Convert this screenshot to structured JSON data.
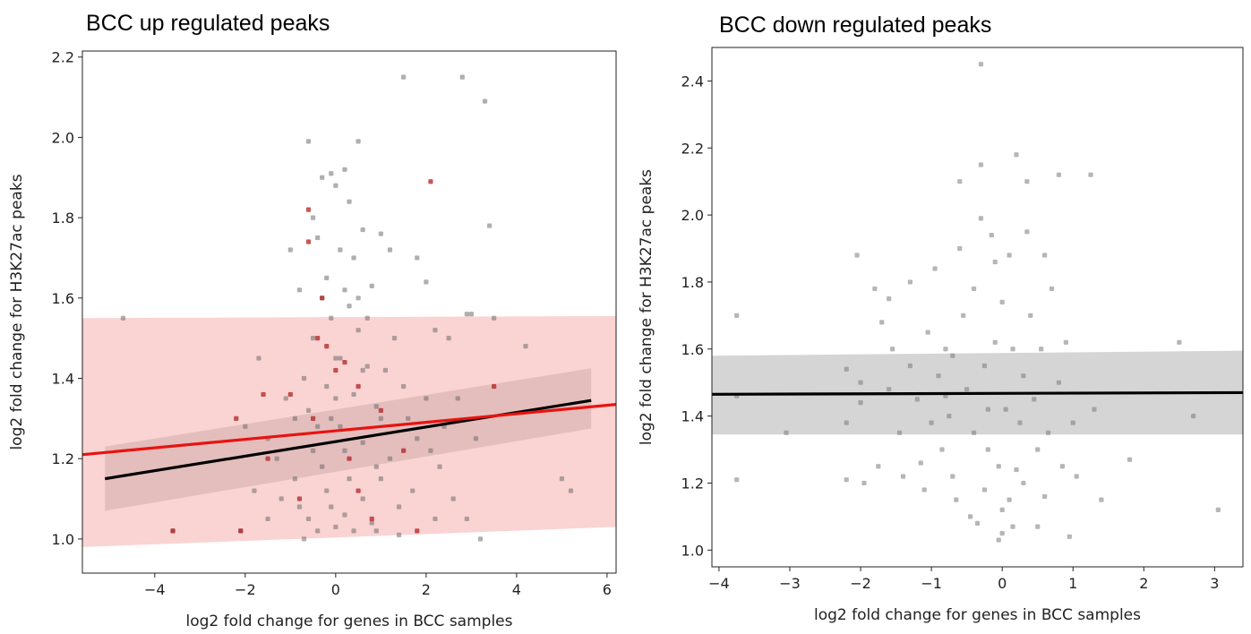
{
  "chart_data": [
    {
      "type": "scatter",
      "title": "BCC up regulated peaks",
      "xlabel": "log2 fold change for genes in BCC samples",
      "ylabel": "log2 fold change for H3K27ac peaks",
      "xlim": [
        -5.6,
        6.2
      ],
      "ylim": [
        0.915,
        2.215
      ],
      "xticks": [
        -4,
        -2,
        0,
        2,
        4,
        6
      ],
      "yticks": [
        1.0,
        1.2,
        1.4,
        1.6,
        1.8,
        2.0,
        2.2
      ],
      "colors": {
        "gray_points": "#6e6e6e",
        "red_points": "#b22222",
        "red_line": "#e8130f",
        "black_line": "#000000",
        "red_band": "#f7b8b8",
        "gray_band": "#808080"
      },
      "series": [
        {
          "color": "gray",
          "points": [
            [
              -4.7,
              1.55
            ],
            [
              -3.6,
              1.02
            ],
            [
              -2.1,
              1.02
            ],
            [
              -1.7,
              1.45
            ],
            [
              -1.5,
              1.25
            ],
            [
              -1.2,
              1.1
            ],
            [
              -1.0,
              1.72
            ],
            [
              -0.8,
              1.62
            ],
            [
              -0.6,
              1.99
            ],
            [
              -0.5,
              1.8
            ],
            [
              -0.4,
              1.75
            ],
            [
              -0.3,
              1.9
            ],
            [
              -0.1,
              1.91
            ],
            [
              0.0,
              1.88
            ],
            [
              0.2,
              1.92
            ],
            [
              0.3,
              1.84
            ],
            [
              0.5,
              1.99
            ],
            [
              0.6,
              1.77
            ],
            [
              0.8,
              1.63
            ],
            [
              1.0,
              1.76
            ],
            [
              1.2,
              1.72
            ],
            [
              1.5,
              2.15
            ],
            [
              1.8,
              1.7
            ],
            [
              2.0,
              1.64
            ],
            [
              2.2,
              1.52
            ],
            [
              2.5,
              1.5
            ],
            [
              2.8,
              2.15
            ],
            [
              2.9,
              1.56
            ],
            [
              3.0,
              1.56
            ],
            [
              3.3,
              2.09
            ],
            [
              3.4,
              1.78
            ],
            [
              3.5,
              1.55
            ],
            [
              4.2,
              1.48
            ],
            [
              5.0,
              1.15
            ],
            [
              5.2,
              1.12
            ],
            [
              -0.9,
              1.3
            ],
            [
              -0.7,
              1.4
            ],
            [
              -0.5,
              1.5
            ],
            [
              -0.3,
              1.6
            ],
            [
              -0.1,
              1.55
            ],
            [
              0.1,
              1.45
            ],
            [
              0.3,
              1.58
            ],
            [
              0.5,
              1.52
            ],
            [
              0.7,
              1.43
            ],
            [
              0.9,
              1.33
            ],
            [
              -0.8,
              1.08
            ],
            [
              -0.6,
              1.05
            ],
            [
              -0.4,
              1.02
            ],
            [
              -0.2,
              1.12
            ],
            [
              0.0,
              1.03
            ],
            [
              0.2,
              1.06
            ],
            [
              0.4,
              1.02
            ],
            [
              0.6,
              1.1
            ],
            [
              0.8,
              1.04
            ],
            [
              1.0,
              1.15
            ],
            [
              1.2,
              1.2
            ],
            [
              1.4,
              1.08
            ],
            [
              1.6,
              1.3
            ],
            [
              1.8,
              1.25
            ],
            [
              2.0,
              1.35
            ],
            [
              2.3,
              1.18
            ],
            [
              2.6,
              1.1
            ],
            [
              2.9,
              1.05
            ],
            [
              3.2,
              1.0
            ],
            [
              -1.3,
              1.2
            ],
            [
              -1.1,
              1.35
            ],
            [
              -0.9,
              1.15
            ],
            [
              -0.2,
              1.38
            ],
            [
              0.1,
              1.28
            ],
            [
              0.4,
              1.36
            ],
            [
              0.6,
              1.24
            ],
            [
              0.9,
              1.18
            ],
            [
              1.1,
              1.42
            ],
            [
              1.3,
              1.5
            ],
            [
              1.5,
              1.38
            ],
            [
              1.7,
              1.12
            ],
            [
              2.1,
              1.22
            ],
            [
              2.4,
              1.28
            ],
            [
              -0.5,
              1.22
            ],
            [
              -0.3,
              1.18
            ],
            [
              -0.1,
              1.08
            ],
            [
              0.0,
              1.45
            ],
            [
              0.2,
              1.62
            ],
            [
              0.4,
              1.7
            ],
            [
              0.0,
              1.35
            ],
            [
              0.3,
              1.15
            ],
            [
              -0.6,
              1.32
            ],
            [
              0.7,
              1.55
            ],
            [
              1.0,
              1.3
            ],
            [
              -1.5,
              1.05
            ],
            [
              -2.0,
              1.28
            ],
            [
              -1.8,
              1.12
            ],
            [
              2.7,
              1.35
            ],
            [
              3.1,
              1.25
            ],
            [
              0.5,
              1.6
            ],
            [
              -0.2,
              1.65
            ],
            [
              0.1,
              1.72
            ],
            [
              0.9,
              1.02
            ],
            [
              -0.7,
              1.0
            ],
            [
              1.4,
              1.01
            ],
            [
              2.2,
              1.05
            ],
            [
              -0.4,
              1.28
            ],
            [
              0.6,
              1.42
            ],
            [
              0.2,
              1.22
            ],
            [
              -0.1,
              1.3
            ]
          ]
        },
        {
          "color": "red",
          "points": [
            [
              -3.6,
              1.02
            ],
            [
              -2.1,
              1.02
            ],
            [
              -0.6,
              1.82
            ],
            [
              -0.6,
              1.74
            ],
            [
              2.1,
              1.89
            ],
            [
              -0.4,
              1.5
            ],
            [
              -0.2,
              1.48
            ],
            [
              0.2,
              1.44
            ],
            [
              -2.2,
              1.3
            ],
            [
              -1.0,
              1.36
            ],
            [
              -0.5,
              1.3
            ],
            [
              0.0,
              1.42
            ],
            [
              0.5,
              1.38
            ],
            [
              1.0,
              1.32
            ],
            [
              -1.5,
              1.2
            ],
            [
              0.5,
              1.12
            ],
            [
              1.5,
              1.22
            ],
            [
              3.5,
              1.38
            ],
            [
              -0.3,
              1.6
            ],
            [
              0.8,
              1.05
            ],
            [
              -0.8,
              1.1
            ],
            [
              1.8,
              1.02
            ],
            [
              -1.6,
              1.36
            ],
            [
              0.3,
              1.2
            ]
          ]
        }
      ],
      "regression_lines": [
        {
          "color": "black",
          "x": [
            -5.1,
            5.65
          ],
          "y": [
            1.15,
            1.345
          ],
          "ci_lower": [
            1.07,
            1.275
          ],
          "ci_upper": [
            1.23,
            1.425
          ]
        },
        {
          "color": "red",
          "x": [
            -5.6,
            6.2
          ],
          "y": [
            1.21,
            1.335
          ],
          "ci_lower": [
            0.98,
            1.03
          ],
          "ci_upper": [
            1.55,
            1.555
          ]
        }
      ]
    },
    {
      "type": "scatter",
      "title": "BCC down regulated peaks",
      "xlabel": "log2 fold change for genes in BCC samples",
      "ylabel": "log2 fold change for H3K27ac peaks",
      "xlim": [
        -4.1,
        3.4
      ],
      "ylim": [
        0.95,
        2.5
      ],
      "xticks": [
        -4,
        -3,
        -2,
        -1,
        0,
        1,
        2,
        3
      ],
      "yticks": [
        1.0,
        1.2,
        1.4,
        1.6,
        1.8,
        2.0,
        2.2,
        2.4
      ],
      "colors": {
        "gray_points": "#7a7a7a",
        "black_line": "#000000",
        "gray_band": "#d5d5d5"
      },
      "series": [
        {
          "color": "gray",
          "points": [
            [
              -3.75,
              1.7
            ],
            [
              -3.75,
              1.46
            ],
            [
              -3.75,
              1.21
            ],
            [
              -3.05,
              1.35
            ],
            [
              -2.2,
              1.54
            ],
            [
              -2.2,
              1.38
            ],
            [
              -2.2,
              1.21
            ],
            [
              -2.05,
              1.88
            ],
            [
              -2.0,
              1.5
            ],
            [
              -2.0,
              1.44
            ],
            [
              -1.95,
              1.2
            ],
            [
              -1.8,
              1.78
            ],
            [
              -1.75,
              1.25
            ],
            [
              -1.7,
              1.68
            ],
            [
              -1.6,
              1.75
            ],
            [
              -1.55,
              1.6
            ],
            [
              -1.45,
              1.35
            ],
            [
              -1.4,
              1.22
            ],
            [
              -1.3,
              1.8
            ],
            [
              -1.3,
              1.55
            ],
            [
              -1.2,
              1.45
            ],
            [
              -1.15,
              1.26
            ],
            [
              -1.1,
              1.18
            ],
            [
              -1.05,
              1.65
            ],
            [
              -1.0,
              1.38
            ],
            [
              -0.95,
              1.84
            ],
            [
              -0.9,
              1.52
            ],
            [
              -0.85,
              1.3
            ],
            [
              -0.8,
              1.6
            ],
            [
              -0.75,
              1.4
            ],
            [
              -0.7,
              1.22
            ],
            [
              -0.65,
              1.15
            ],
            [
              -0.6,
              2.1
            ],
            [
              -0.55,
              1.7
            ],
            [
              -0.5,
              1.48
            ],
            [
              -0.45,
              1.1
            ],
            [
              -0.4,
              1.35
            ],
            [
              -0.35,
              1.08
            ],
            [
              -0.3,
              2.45
            ],
            [
              -0.3,
              2.15
            ],
            [
              -0.3,
              1.99
            ],
            [
              -0.25,
              1.55
            ],
            [
              -0.2,
              1.3
            ],
            [
              -0.15,
              1.94
            ],
            [
              -0.1,
              1.62
            ],
            [
              -0.05,
              1.25
            ],
            [
              0.0,
              1.12
            ],
            [
              0.0,
              1.05
            ],
            [
              0.05,
              1.42
            ],
            [
              0.1,
              1.88
            ],
            [
              0.15,
              1.6
            ],
            [
              0.2,
              2.18
            ],
            [
              0.25,
              1.38
            ],
            [
              0.3,
              1.2
            ],
            [
              0.35,
              2.1
            ],
            [
              0.35,
              1.95
            ],
            [
              0.4,
              1.7
            ],
            [
              0.45,
              1.45
            ],
            [
              0.5,
              1.3
            ],
            [
              0.5,
              1.07
            ],
            [
              0.55,
              1.6
            ],
            [
              0.6,
              1.88
            ],
            [
              0.65,
              1.35
            ],
            [
              0.7,
              1.78
            ],
            [
              0.8,
              2.12
            ],
            [
              0.8,
              1.5
            ],
            [
              0.85,
              1.25
            ],
            [
              0.9,
              1.62
            ],
            [
              0.95,
              1.04
            ],
            [
              1.0,
              1.38
            ],
            [
              1.05,
              1.22
            ],
            [
              1.25,
              2.12
            ],
            [
              1.3,
              1.42
            ],
            [
              1.4,
              1.15
            ],
            [
              1.8,
              1.27
            ],
            [
              2.5,
              1.62
            ],
            [
              2.7,
              1.4
            ],
            [
              3.05,
              1.12
            ],
            [
              -0.6,
              1.9
            ],
            [
              -0.2,
              1.42
            ],
            [
              0.1,
              1.15
            ],
            [
              -0.4,
              1.78
            ],
            [
              0.3,
              1.52
            ],
            [
              -0.8,
              1.46
            ],
            [
              -1.6,
              1.48
            ],
            [
              -0.1,
              1.86
            ],
            [
              0.0,
              1.74
            ],
            [
              0.2,
              1.24
            ],
            [
              -0.25,
              1.18
            ],
            [
              0.15,
              1.07
            ],
            [
              -0.05,
              1.03
            ],
            [
              0.6,
              1.16
            ],
            [
              -0.7,
              1.58
            ]
          ]
        }
      ],
      "regression_lines": [
        {
          "color": "black",
          "x": [
            -4.1,
            3.4
          ],
          "y": [
            1.465,
            1.47
          ],
          "ci_lower": [
            1.345,
            1.345
          ],
          "ci_upper": [
            1.58,
            1.595
          ]
        }
      ]
    }
  ]
}
